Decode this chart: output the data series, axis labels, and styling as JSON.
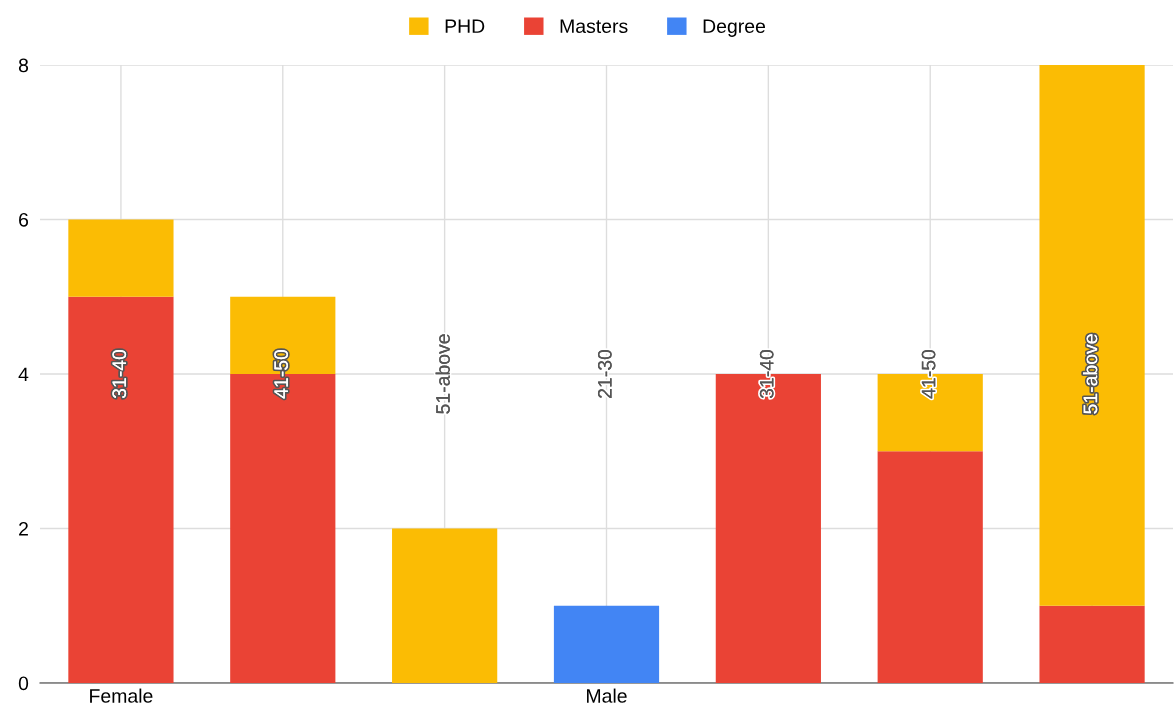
{
  "chart_data": {
    "type": "bar",
    "stacked": true,
    "categories": [
      "Female",
      null,
      null,
      "Male",
      null,
      null,
      null
    ],
    "value_labels": [
      "31-40",
      "41-50",
      "51-above",
      "21-30",
      "31-40",
      "41-50",
      "51-above"
    ],
    "series": [
      {
        "name": "Degree",
        "color": "#4285f4",
        "values": [
          0,
          0,
          0,
          1,
          0,
          0,
          0
        ]
      },
      {
        "name": "Masters",
        "color": "#ea4335",
        "values": [
          5,
          4,
          0,
          0,
          4,
          3,
          1
        ]
      },
      {
        "name": "PHD",
        "color": "#fbbc04",
        "values": [
          1,
          1,
          2,
          0,
          0,
          1,
          7
        ]
      }
    ],
    "ylim": [
      0,
      8
    ],
    "yticks": [
      0,
      2,
      4,
      6,
      8
    ],
    "grid": true,
    "legend": "top"
  }
}
